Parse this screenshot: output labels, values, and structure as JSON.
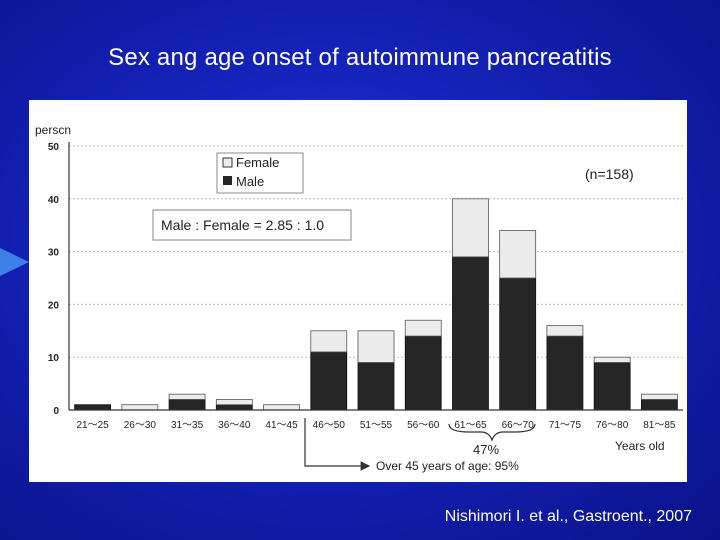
{
  "slide": {
    "title": "Sex ang age onset of autoimmune pancreatitis",
    "citation": "Nishimori I. et al., Gastroent., 2007"
  },
  "chart_data": {
    "type": "bar",
    "stacked": true,
    "ylabel": "persсn",
    "xlabel": "Years old",
    "ylim": [
      0,
      50
    ],
    "yticks": [
      "0",
      "10",
      "20",
      "30",
      "40",
      "50"
    ],
    "grid": true,
    "legend_placement": "top-left",
    "categories": [
      "21～25",
      "26～30",
      "31～35",
      "36～40",
      "41～45",
      "46～50",
      "51～55",
      "56～60",
      "61～65",
      "66～70",
      "71～75",
      "76～80",
      "81～85"
    ],
    "series": [
      {
        "name": "Male",
        "color": "#262626",
        "values": [
          1,
          0,
          2,
          1,
          0,
          11,
          9,
          14,
          29,
          25,
          14,
          9,
          2
        ]
      },
      {
        "name": "Female",
        "color": "#ececec",
        "values": [
          0,
          1,
          1,
          1,
          1,
          4,
          6,
          3,
          11,
          9,
          2,
          1,
          1
        ]
      }
    ],
    "annotations": {
      "n_label": "(n=158)",
      "ratio_label": "Male : Female = 2.85 : 1.0",
      "peak_percent": "47%",
      "over45_label": "Over 45 years of age: 95%"
    }
  }
}
